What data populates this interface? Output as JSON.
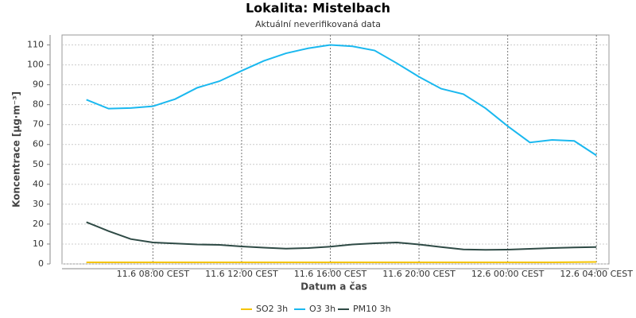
{
  "chart_data": {
    "type": "line",
    "title": "Lokalita: Mistelbach",
    "subtitle": "Aktuální neverifikovaná data",
    "x_label": "Datum a čas",
    "y_label": "Koncentrace [µg·m⁻³]",
    "x": [
      "11.6 05:00",
      "11.6 06:00",
      "11.6 07:00",
      "11.6 08:00",
      "11.6 09:00",
      "11.6 10:00",
      "11.6 11:00",
      "11.6 12:00",
      "11.6 13:00",
      "11.6 14:00",
      "11.6 15:00",
      "11.6 16:00",
      "11.6 17:00",
      "11.6 18:00",
      "11.6 19:00",
      "11.6 20:00",
      "11.6 21:00",
      "11.6 22:00",
      "11.6 23:00",
      "12.6 00:00",
      "12.6 01:00",
      "12.6 02:00",
      "12.6 03:00",
      "12.6 04:00"
    ],
    "series": [
      {
        "name": "SO2 3h",
        "color": "#f5c400",
        "values": [
          0.8,
          0.8,
          0.8,
          0.8,
          0.8,
          0.8,
          0.8,
          0.8,
          0.8,
          0.8,
          0.8,
          0.8,
          0.8,
          0.8,
          0.8,
          0.8,
          0.8,
          0.8,
          0.8,
          0.8,
          0.8,
          0.8,
          0.9,
          1.0
        ]
      },
      {
        "name": "O3 3h",
        "color": "#1ab8ef",
        "values": [
          82.5,
          78,
          78.3,
          79.2,
          82.8,
          88.5,
          91.8,
          97,
          102,
          105.8,
          108.3,
          110,
          109.3,
          107.2,
          100.8,
          94,
          88,
          85.3,
          78.2,
          69.2,
          61,
          62.3,
          61.8,
          54.5
        ]
      },
      {
        "name": "PM10 3h",
        "color": "#2e4a45",
        "values": [
          21,
          16.5,
          12.5,
          10.8,
          10.3,
          9.8,
          9.6,
          8.8,
          8.2,
          7.7,
          8.0,
          8.7,
          9.8,
          10.4,
          10.8,
          9.8,
          8.5,
          7.3,
          7.1,
          7.2,
          7.6,
          8.0,
          8.3,
          8.5
        ]
      }
    ],
    "xlim": [
      "11.6 03:54",
      "12.6 04:34"
    ],
    "xticks": [
      {
        "value": "11.6 08:00",
        "label": "11.6 08:00 CEST"
      },
      {
        "value": "11.6 12:00",
        "label": "11.6 12:00 CEST"
      },
      {
        "value": "11.6 16:00",
        "label": "11.6 16:00 CEST"
      },
      {
        "value": "11.6 20:00",
        "label": "11.6 20:00 CEST"
      },
      {
        "value": "12.6 00:00",
        "label": "12.6 00:00 CEST"
      },
      {
        "value": "12.6 04:00",
        "label": "12.6 04:00 CEST"
      }
    ],
    "ylim": [
      0,
      115
    ],
    "yticks": [
      0,
      10,
      20,
      30,
      40,
      50,
      60,
      70,
      80,
      90,
      100,
      110
    ],
    "grid": true,
    "legend": "bottom"
  }
}
